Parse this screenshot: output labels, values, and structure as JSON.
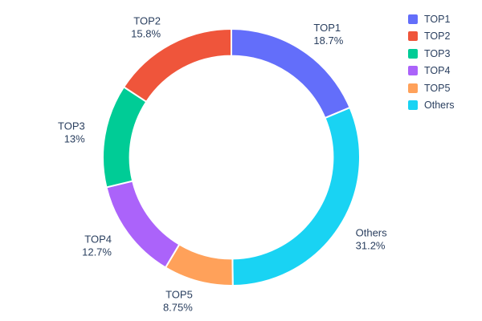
{
  "chart_data": {
    "type": "pie",
    "hole": 0.79,
    "categories": [
      "TOP1",
      "TOP2",
      "TOP3",
      "TOP4",
      "TOP5",
      "Others"
    ],
    "values": [
      18.7,
      15.8,
      13,
      12.7,
      8.75,
      31.2
    ],
    "percent_labels": [
      "18.7%",
      "15.8%",
      "13%",
      "12.7%",
      "8.75%",
      "31.2%"
    ],
    "colors": [
      "#636EFA",
      "#EF553B",
      "#00CC96",
      "#AB63FA",
      "#FFA15A",
      "#19D3F3"
    ],
    "font_color": "#2a3f5f",
    "background": "#ffffff",
    "legend_position": "top-right",
    "legend": [
      "TOP1",
      "TOP2",
      "TOP3",
      "TOP4",
      "TOP5",
      "Others"
    ]
  }
}
